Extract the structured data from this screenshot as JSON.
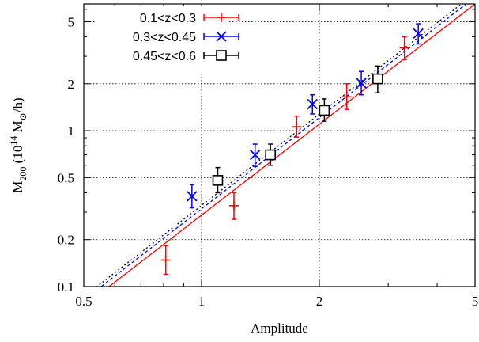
{
  "chart_data": {
    "type": "scatter",
    "title": "",
    "xlabel": "Amplitude",
    "ylabel_main": "M",
    "ylabel_sub": "200",
    "ylabel_open": " (10",
    "ylabel_exp": "14",
    "ylabel_unit": " M",
    "ylabel_sun_sub": "⊙",
    "ylabel_close": "/h)",
    "xscale": "log",
    "yscale": "log",
    "xlim": [
      0.5,
      5
    ],
    "ylim": [
      0.1,
      6.5
    ],
    "xticks": [
      0.5,
      1,
      2,
      5
    ],
    "xtick_labels": [
      "0.5",
      "1",
      "2",
      "5"
    ],
    "yticks": [
      0.1,
      0.2,
      0.5,
      1,
      2,
      5
    ],
    "ytick_labels": [
      "0.1",
      "0.2",
      "0.5",
      "1",
      "2",
      "5"
    ],
    "grid": true,
    "legend_position": "top-left",
    "series": [
      {
        "name": "0.1<z<0.3",
        "color": "#ff0000",
        "marker": "plus",
        "line_style": "solid",
        "fit": [
          [
            0.5,
            0.075
          ],
          [
            5,
            6.5
          ]
        ],
        "points": [
          {
            "x": 0.81,
            "y": 0.148,
            "yerr": [
              0.028,
              0.035
            ]
          },
          {
            "x": 1.21,
            "y": 0.33,
            "yerr": [
              0.06,
              0.07
            ]
          },
          {
            "x": 1.75,
            "y": 1.06,
            "yerr": [
              0.15,
              0.18
            ]
          },
          {
            "x": 2.35,
            "y": 1.65,
            "yerr": [
              0.28,
              0.35
            ]
          },
          {
            "x": 3.3,
            "y": 3.4,
            "yerr": [
              0.55,
              0.6
            ]
          }
        ]
      },
      {
        "name": "0.3<z<0.45",
        "color": "#0000ff",
        "marker": "cross",
        "line_style": "dashed",
        "fit": [
          [
            0.5,
            0.082
          ],
          [
            5,
            7.2
          ]
        ],
        "points": [
          {
            "x": 0.945,
            "y": 0.38,
            "yerr": [
              0.06,
              0.07
            ]
          },
          {
            "x": 1.37,
            "y": 0.7,
            "yerr": [
              0.11,
              0.12
            ]
          },
          {
            "x": 1.92,
            "y": 1.48,
            "yerr": [
              0.2,
              0.22
            ]
          },
          {
            "x": 2.56,
            "y": 2.02,
            "yerr": [
              0.32,
              0.38
            ]
          },
          {
            "x": 3.58,
            "y": 4.2,
            "yerr": [
              0.6,
              0.65
            ]
          }
        ]
      },
      {
        "name": "0.45<z<0.6",
        "color": "#000000",
        "marker": "square",
        "line_style": "dotted",
        "fit": [
          [
            0.5,
            0.086
          ],
          [
            5,
            7.6
          ]
        ],
        "points": [
          {
            "x": 1.1,
            "y": 0.48,
            "yerr": [
              0.08,
              0.1
            ]
          },
          {
            "x": 1.5,
            "y": 0.7,
            "yerr": [
              0.1,
              0.12
            ]
          },
          {
            "x": 2.06,
            "y": 1.35,
            "yerr": [
              0.2,
              0.25
            ]
          },
          {
            "x": 2.82,
            "y": 2.15,
            "yerr": [
              0.4,
              0.45
            ]
          }
        ]
      }
    ]
  }
}
